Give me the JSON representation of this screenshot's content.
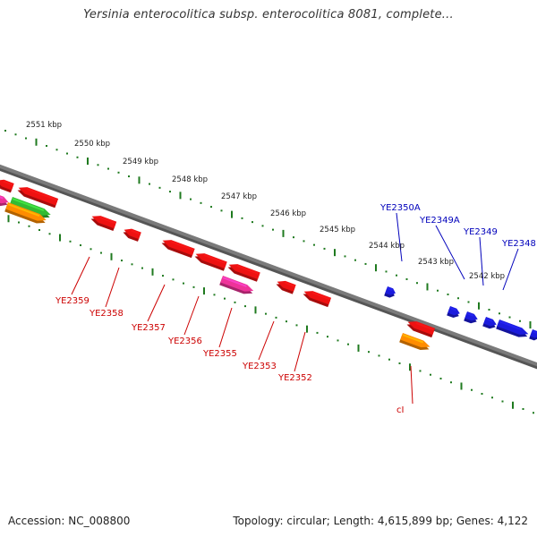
{
  "title": "Yersinia enterocolitica subsp. enterocolitica 8081, complete...",
  "footer": {
    "accession": "Accession: NC_008800",
    "summary": "Topology: circular; Length: 4,615,899 bp; Genes: 4,122"
  },
  "colors": {
    "backbone": "#7a7a7a",
    "tick": "#1f7a1f",
    "reverse_gene": "#ee1111",
    "forward_gene": "#1b1bdd",
    "pseudogene": "#ee3399",
    "rna_green": "#33bb33",
    "rna_orange": "#ff8c00",
    "label_red": "#cc0000",
    "label_blue": "#0000bb"
  },
  "ruler_labels": [
    "2551 kbp",
    "2550 kbp",
    "2549 kbp",
    "2548 kbp",
    "2547 kbp",
    "2546 kbp",
    "2545 kbp",
    "2544 kbp",
    "2543 kbp",
    "2542 kbp"
  ],
  "gene_labels_reverse": [
    "YE2359",
    "YE2358",
    "YE2357",
    "YE2356",
    "YE2355",
    "YE2353",
    "YE2352",
    "cI"
  ],
  "gene_labels_forward": [
    "YE2350A",
    "YE2349A",
    "YE2349",
    "YE2348"
  ]
}
